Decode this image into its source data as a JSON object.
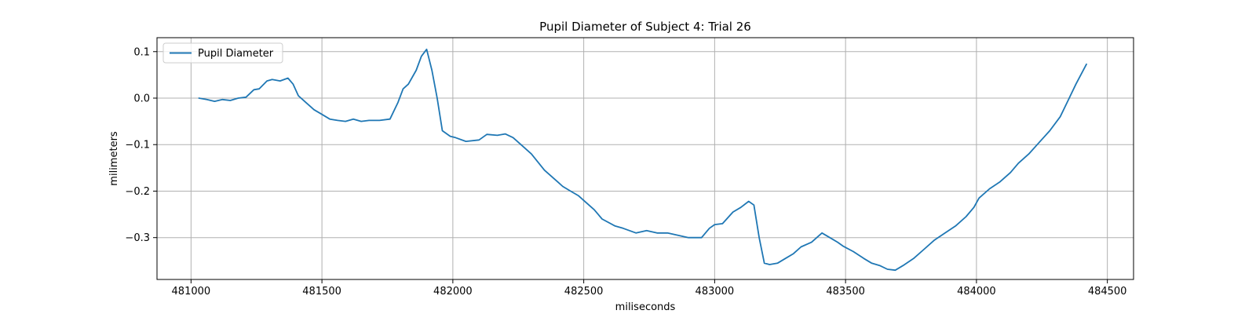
{
  "chart_data": {
    "type": "line",
    "title": "Pupil Diameter of Subject 4: Trial 26",
    "xlabel": "miliseconds",
    "ylabel": "milimeters",
    "xlim": [
      480870,
      484600
    ],
    "ylim": [
      -0.39,
      0.13
    ],
    "xticks": [
      481000,
      481500,
      482000,
      482500,
      483000,
      483500,
      484000,
      484500
    ],
    "yticks": [
      0.1,
      0.0,
      -0.1,
      -0.2,
      -0.3
    ],
    "ytick_labels": [
      "0.1",
      "0.0",
      "−0.1",
      "−0.2",
      "−0.3"
    ],
    "grid": true,
    "legend_position": "upper-left",
    "colors": {
      "line": "#1f77b4",
      "grid": "#b0b0b0"
    },
    "series": [
      {
        "name": "Pupil Diameter",
        "x": [
          481030,
          481060,
          481090,
          481120,
          481150,
          481180,
          481210,
          481240,
          481260,
          481290,
          481310,
          481340,
          481370,
          481390,
          481410,
          481440,
          481470,
          481500,
          481530,
          481560,
          481590,
          481620,
          481650,
          481680,
          481720,
          481760,
          481790,
          481810,
          481830,
          481860,
          481880,
          481900,
          481920,
          481940,
          481960,
          481990,
          482010,
          482050,
          482100,
          482130,
          482170,
          482200,
          482230,
          482260,
          482300,
          482350,
          482400,
          482420,
          482450,
          482480,
          482500,
          482540,
          482570,
          482620,
          482650,
          482700,
          482740,
          482780,
          482820,
          482860,
          482900,
          482950,
          482980,
          483000,
          483030,
          483070,
          483100,
          483130,
          483150,
          483170,
          483190,
          483210,
          483240,
          483270,
          483300,
          483330,
          483370,
          483410,
          483440,
          483470,
          483490,
          483530,
          483570,
          483600,
          483630,
          483660,
          483690,
          483720,
          483760,
          483800,
          483840,
          483880,
          483920,
          483960,
          483990,
          484010,
          484050,
          484090,
          484130,
          484160,
          484200,
          484240,
          484280,
          484320,
          484350,
          484380,
          484420
        ],
        "y": [
          0.0,
          -0.003,
          -0.007,
          -0.003,
          -0.005,
          0.0,
          0.002,
          0.018,
          0.02,
          0.037,
          0.04,
          0.037,
          0.043,
          0.03,
          0.005,
          -0.01,
          -0.025,
          -0.035,
          -0.045,
          -0.048,
          -0.05,
          -0.045,
          -0.05,
          -0.048,
          -0.048,
          -0.045,
          -0.01,
          0.02,
          0.03,
          0.06,
          0.09,
          0.105,
          0.06,
          0.0,
          -0.07,
          -0.082,
          -0.085,
          -0.093,
          -0.09,
          -0.078,
          -0.08,
          -0.077,
          -0.085,
          -0.1,
          -0.12,
          -0.155,
          -0.18,
          -0.19,
          -0.2,
          -0.21,
          -0.22,
          -0.24,
          -0.26,
          -0.275,
          -0.28,
          -0.29,
          -0.285,
          -0.29,
          -0.29,
          -0.295,
          -0.3,
          -0.3,
          -0.28,
          -0.272,
          -0.27,
          -0.245,
          -0.235,
          -0.222,
          -0.23,
          -0.3,
          -0.355,
          -0.358,
          -0.355,
          -0.345,
          -0.335,
          -0.32,
          -0.31,
          -0.29,
          -0.3,
          -0.31,
          -0.318,
          -0.33,
          -0.345,
          -0.355,
          -0.36,
          -0.368,
          -0.37,
          -0.36,
          -0.345,
          -0.325,
          -0.305,
          -0.29,
          -0.275,
          -0.255,
          -0.235,
          -0.215,
          -0.195,
          -0.18,
          -0.16,
          -0.14,
          -0.12,
          -0.095,
          -0.07,
          -0.04,
          -0.005,
          0.03,
          0.073
        ]
      }
    ]
  }
}
